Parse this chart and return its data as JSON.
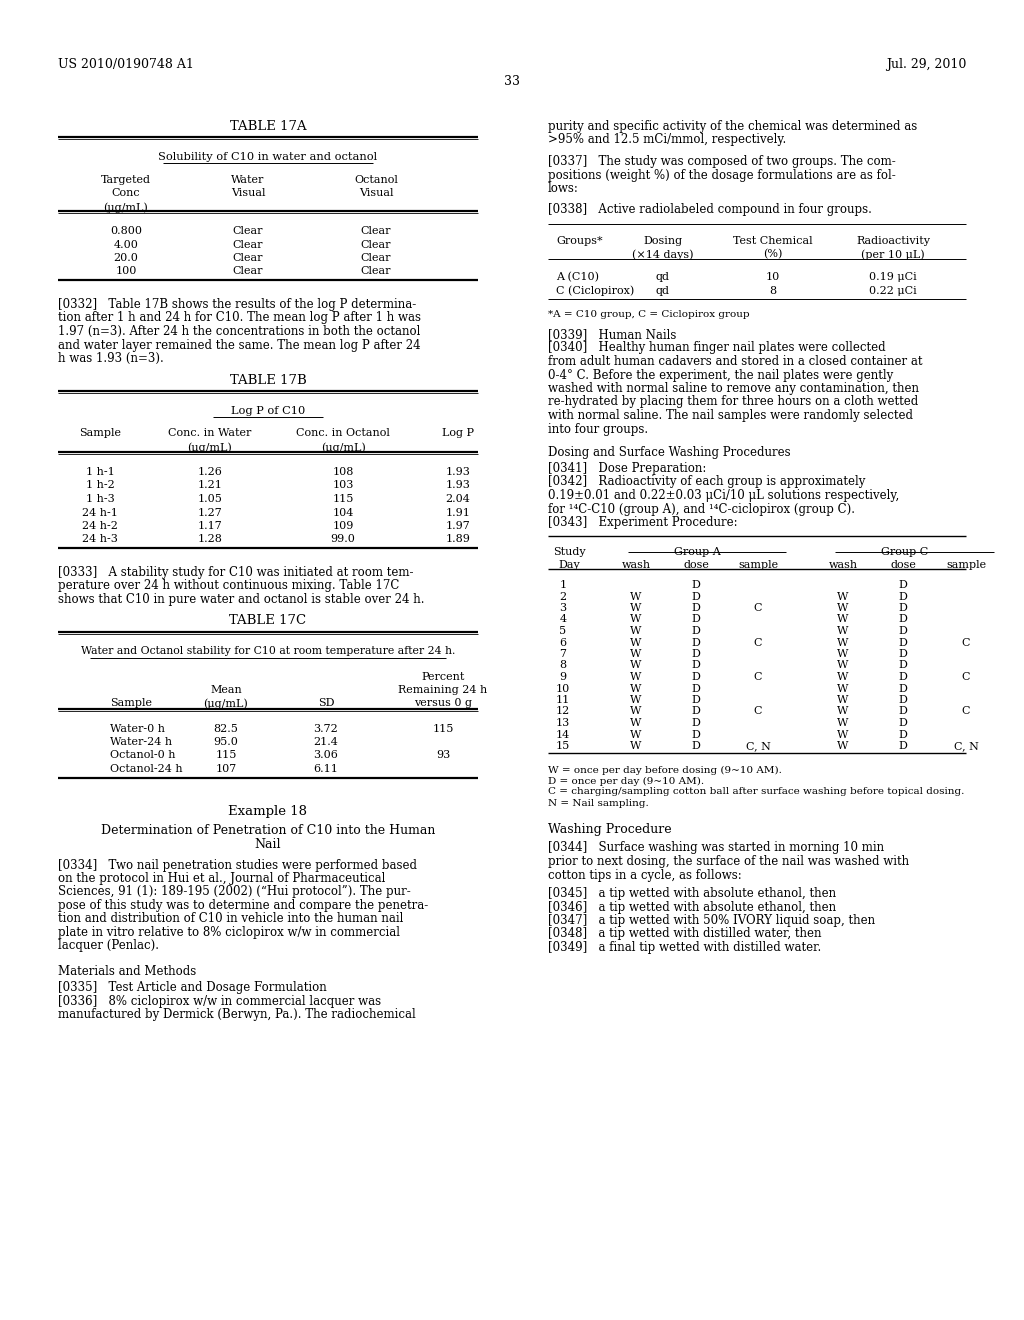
{
  "bg_color": "#ffffff",
  "header_left": "US 2010/0190748 A1",
  "header_right": "Jul. 29, 2010",
  "page_number": "33"
}
